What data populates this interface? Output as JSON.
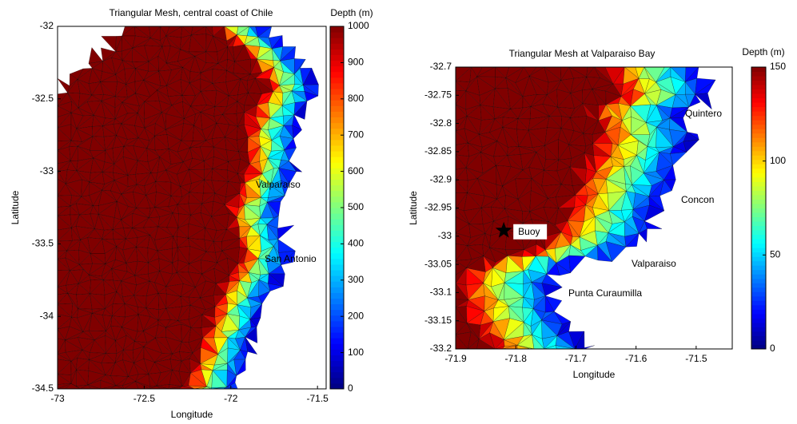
{
  "chart_data": [
    {
      "type": "mesh",
      "title": "Triangular Mesh, central coast of Chile",
      "xlabel": "Longitude",
      "ylabel": "Latitude",
      "xlim": [
        -73,
        -71.45
      ],
      "ylim": [
        -34.5,
        -32
      ],
      "xticks": [
        -73,
        -72.5,
        -72,
        -71.5
      ],
      "yticks": [
        -34.5,
        -34,
        -33.5,
        -33,
        -32.5,
        -32
      ],
      "colorbar_label": "Depth (m)",
      "clim": [
        0,
        1000
      ],
      "cticks": [
        0,
        100,
        200,
        300,
        400,
        500,
        600,
        700,
        800,
        900,
        1000
      ],
      "annotations": [
        "Valparaiso",
        "San Antonio"
      ]
    },
    {
      "type": "mesh",
      "title": "Triangular Mesh at Valparaiso Bay",
      "xlabel": "Longitude",
      "ylabel": "Latitude",
      "xlim": [
        -71.9,
        -71.44
      ],
      "ylim": [
        -33.2,
        -32.7
      ],
      "xticks": [
        -71.9,
        -71.8,
        -71.7,
        -71.6,
        -71.5
      ],
      "yticks": [
        -33.2,
        -33.15,
        -33.1,
        -33.05,
        -33,
        -32.95,
        -32.9,
        -32.85,
        -32.8,
        -32.75,
        -32.7
      ],
      "colorbar_label": "Depth (m)",
      "clim": [
        0,
        150
      ],
      "cticks": [
        0,
        50,
        100,
        150
      ],
      "annotations": [
        "Quintero",
        "Concon",
        "Valparaiso",
        "Punta Curaumilla"
      ],
      "buoy": {
        "label": "Buoy",
        "lon": -71.82,
        "lat": -32.99
      }
    }
  ]
}
